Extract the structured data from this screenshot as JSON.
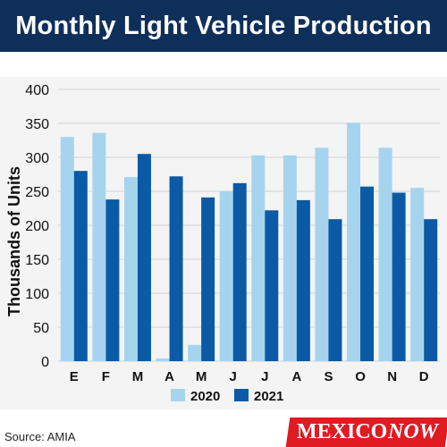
{
  "header": {
    "title": "Monthly Light Vehicle Production"
  },
  "footer": {
    "source": "Source: AMIA",
    "brand_main": "MEXICO",
    "brand_accent": "NOW"
  },
  "colors": {
    "series_2020": "#a6d4ee",
    "series_2021": "#0a5aa5",
    "title_bg": "#0f2f5b",
    "brand_bg": "#e01b22"
  },
  "chart_data": {
    "type": "bar",
    "title": "Monthly Light Vehicle Production",
    "ylabel": "Thousands of Units",
    "xlabel": "",
    "categories": [
      "E",
      "F",
      "M",
      "A",
      "M",
      "J",
      "J",
      "A",
      "S",
      "O",
      "N",
      "D"
    ],
    "ylim": [
      0,
      400
    ],
    "yticks": [
      0,
      50,
      100,
      150,
      200,
      250,
      300,
      350,
      400
    ],
    "grid": true,
    "legend": "bottom",
    "series": [
      {
        "name": "2020",
        "values": [
          330,
          336,
          271,
          4,
          24,
          250,
          303,
          303,
          314,
          351,
          314,
          255
        ]
      },
      {
        "name": "2021",
        "values": [
          280,
          238,
          305,
          272,
          241,
          262,
          222,
          237,
          209,
          257,
          248,
          209
        ]
      }
    ]
  }
}
